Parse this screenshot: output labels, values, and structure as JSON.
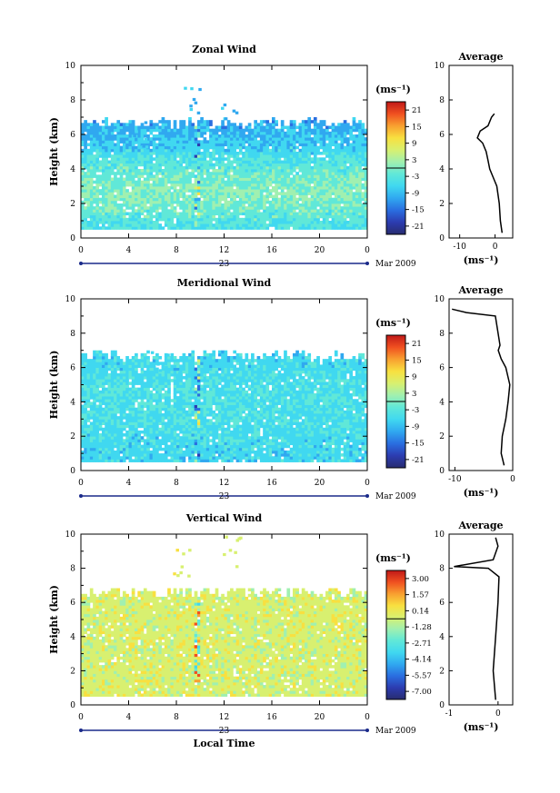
{
  "figure": {
    "xlabel": "Local Time",
    "date_label": "Mar 2009",
    "day_label": "23",
    "colorbar_unit": "(ms⁻¹)"
  },
  "colors": {
    "colormap": [
      "#282c70",
      "#2c3cb0",
      "#2a6ee0",
      "#30a8f0",
      "#40d8f0",
      "#60e8d8",
      "#a0f0b0",
      "#d8f070",
      "#f8e040",
      "#f8a030",
      "#f05020",
      "#c01818"
    ]
  },
  "chart_data": [
    {
      "type": "heatmap",
      "title": "Zonal Wind",
      "xlabel": "",
      "ylabel": "Height (km)",
      "x_ticks": [
        "0",
        "4",
        "8",
        "12",
        "16",
        "20",
        "0"
      ],
      "y_ticks": [
        "0",
        "2",
        "4",
        "6",
        "8",
        "10"
      ],
      "xlim": [
        0,
        24
      ],
      "ylim": [
        0,
        10
      ],
      "colorbar": {
        "unit": "(ms⁻¹)",
        "range": [
          -24,
          24
        ],
        "ticks": [
          "21",
          "15",
          "9",
          "3",
          "-3",
          "-9",
          "-15",
          "-21"
        ]
      },
      "average_profile": {
        "title": "Average",
        "xlabel": "(ms⁻¹)",
        "x_ticks": [
          "-10",
          "0"
        ],
        "y_ticks": [
          "0",
          "2",
          "4",
          "6",
          "8",
          "10"
        ],
        "xlim": [
          -13,
          5
        ],
        "ylim": [
          0,
          10
        ],
        "values": [
          [
            2,
            0.3
          ],
          [
            1.5,
            1.0
          ],
          [
            1.2,
            2.0
          ],
          [
            0.5,
            3.0
          ],
          [
            -0.5,
            3.5
          ],
          [
            -1.5,
            4.0
          ],
          [
            -2.0,
            4.5
          ],
          [
            -2.5,
            5.0
          ],
          [
            -3.5,
            5.5
          ],
          [
            -5.0,
            5.8
          ],
          [
            -4.2,
            6.2
          ],
          [
            -2.0,
            6.5
          ],
          [
            -1.0,
            7.0
          ],
          [
            -0.2,
            7.2
          ]
        ]
      },
      "field": {
        "base": [
          [
            0.5,
            -4
          ],
          [
            2.5,
            1
          ],
          [
            3.5,
            -1
          ],
          [
            4.3,
            -3
          ],
          [
            5.0,
            -6
          ],
          [
            5.7,
            -8
          ],
          [
            6.6,
            -10
          ]
        ],
        "top": 6.6,
        "bottom": 0.35,
        "top_plume": [
          [
            4.8,
            6.8
          ],
          [
            9.4,
            9.3
          ],
          [
            12.5,
            7.8
          ]
        ]
      }
    },
    {
      "type": "heatmap",
      "title": "Meridional Wind",
      "xlabel": "",
      "ylabel": "Height (km)",
      "x_ticks": [
        "0",
        "4",
        "8",
        "12",
        "16",
        "20",
        "0"
      ],
      "y_ticks": [
        "0",
        "2",
        "4",
        "6",
        "8",
        "10"
      ],
      "xlim": [
        0,
        24
      ],
      "ylim": [
        0,
        10
      ],
      "colorbar": {
        "unit": "(ms⁻¹)",
        "range": [
          -24,
          24
        ],
        "ticks": [
          "21",
          "15",
          "9",
          "3",
          "-3",
          "-9",
          "-15",
          "-21"
        ]
      },
      "average_profile": {
        "title": "Average",
        "xlabel": "(ms⁻¹)",
        "x_ticks": [
          "-10",
          "0"
        ],
        "y_ticks": [
          "0",
          "2",
          "4",
          "6",
          "8",
          "10"
        ],
        "xlim": [
          -11,
          0
        ],
        "ylim": [
          0,
          10
        ],
        "values": [
          [
            -1.5,
            0.3
          ],
          [
            -2.0,
            1.0
          ],
          [
            -1.8,
            2.0
          ],
          [
            -1.2,
            3.0
          ],
          [
            -0.8,
            4.0
          ],
          [
            -0.5,
            5.0
          ],
          [
            -1.2,
            6.0
          ],
          [
            -2.0,
            6.5
          ],
          [
            -2.5,
            7.0
          ],
          [
            -2.2,
            7.3
          ],
          [
            -3.0,
            9.0
          ],
          [
            -8.0,
            9.2
          ],
          [
            -10.5,
            9.4
          ]
        ]
      },
      "field": {
        "base": [
          [
            0.5,
            -6
          ],
          [
            2.5,
            -5
          ],
          [
            4,
            -4
          ],
          [
            5.5,
            -5
          ],
          [
            6.6,
            -6
          ]
        ],
        "top": 6.6,
        "bottom": 0.35,
        "top_plume": [
          [
            6.5,
            7.0
          ],
          [
            8.5,
            6.8
          ]
        ]
      }
    },
    {
      "type": "heatmap",
      "title": "Vertical Wind",
      "xlabel": "Local Time",
      "ylabel": "Height (km)",
      "x_ticks": [
        "0",
        "4",
        "8",
        "12",
        "16",
        "20",
        "0"
      ],
      "y_ticks": [
        "0",
        "2",
        "4",
        "6",
        "8",
        "10"
      ],
      "xlim": [
        0,
        24
      ],
      "ylim": [
        0,
        10
      ],
      "colorbar": {
        "unit": "(ms⁻¹)",
        "range": [
          -7.5,
          4.5
        ],
        "ticks": [
          "3.00",
          "1.57",
          "0.14",
          "-1.28",
          "-2.71",
          "-4.14",
          "-5.57",
          "-7.00"
        ]
      },
      "average_profile": {
        "title": "Average",
        "xlabel": "(ms⁻¹)",
        "x_ticks": [
          "-1",
          "0"
        ],
        "y_ticks": [
          "0",
          "2",
          "4",
          "6",
          "8",
          "10"
        ],
        "xlim": [
          -1,
          0.3
        ],
        "ylim": [
          0,
          10
        ],
        "values": [
          [
            -0.05,
            0.3
          ],
          [
            -0.1,
            2.0
          ],
          [
            -0.05,
            4.0
          ],
          [
            0.0,
            6.0
          ],
          [
            0.02,
            7.5
          ],
          [
            -0.2,
            8.0
          ],
          [
            -0.9,
            8.1
          ],
          [
            -0.1,
            8.5
          ],
          [
            0.0,
            9.3
          ],
          [
            -0.05,
            9.8
          ]
        ]
      },
      "field": {
        "base": [
          [
            0.5,
            0
          ],
          [
            6.6,
            0
          ]
        ],
        "top": 6.5,
        "bottom": 0.35,
        "top_plume": [
          [
            8.5,
            9.5
          ],
          [
            12.5,
            10
          ]
        ]
      }
    }
  ]
}
